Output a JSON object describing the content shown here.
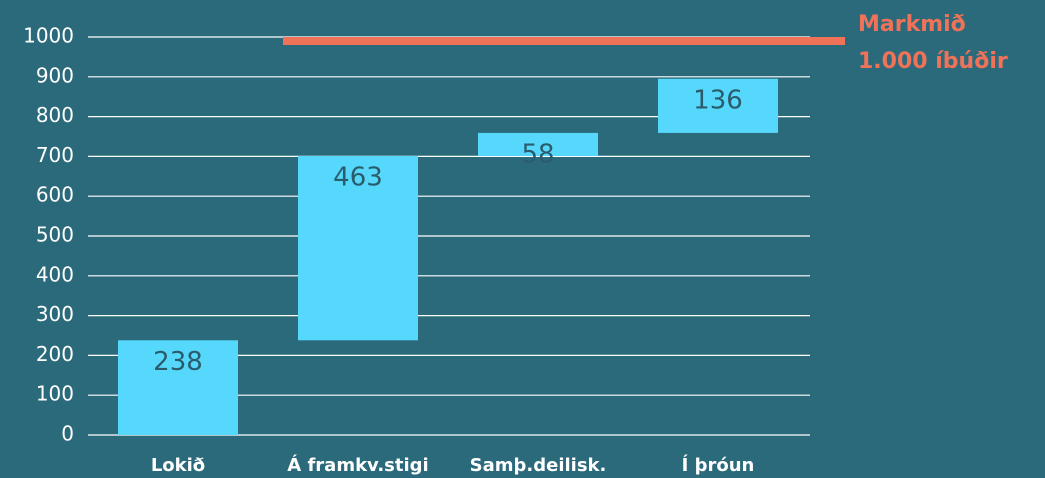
{
  "chart_data": {
    "type": "waterfall",
    "categories": [
      "Lokið",
      "Á framkv.stigi",
      "Samþ.deilisk.",
      "Í þróun"
    ],
    "values": [
      238,
      463,
      58,
      136
    ],
    "color": "#55d8fc",
    "target": 1000,
    "target_color": "#f07258",
    "annotation": [
      "Markmið",
      "1.000 íbúðir"
    ],
    "ylim": [
      0,
      1000
    ],
    "yticks": [
      0,
      100,
      200,
      300,
      400,
      500,
      600,
      700,
      800,
      900,
      1000
    ],
    "grid": true
  }
}
